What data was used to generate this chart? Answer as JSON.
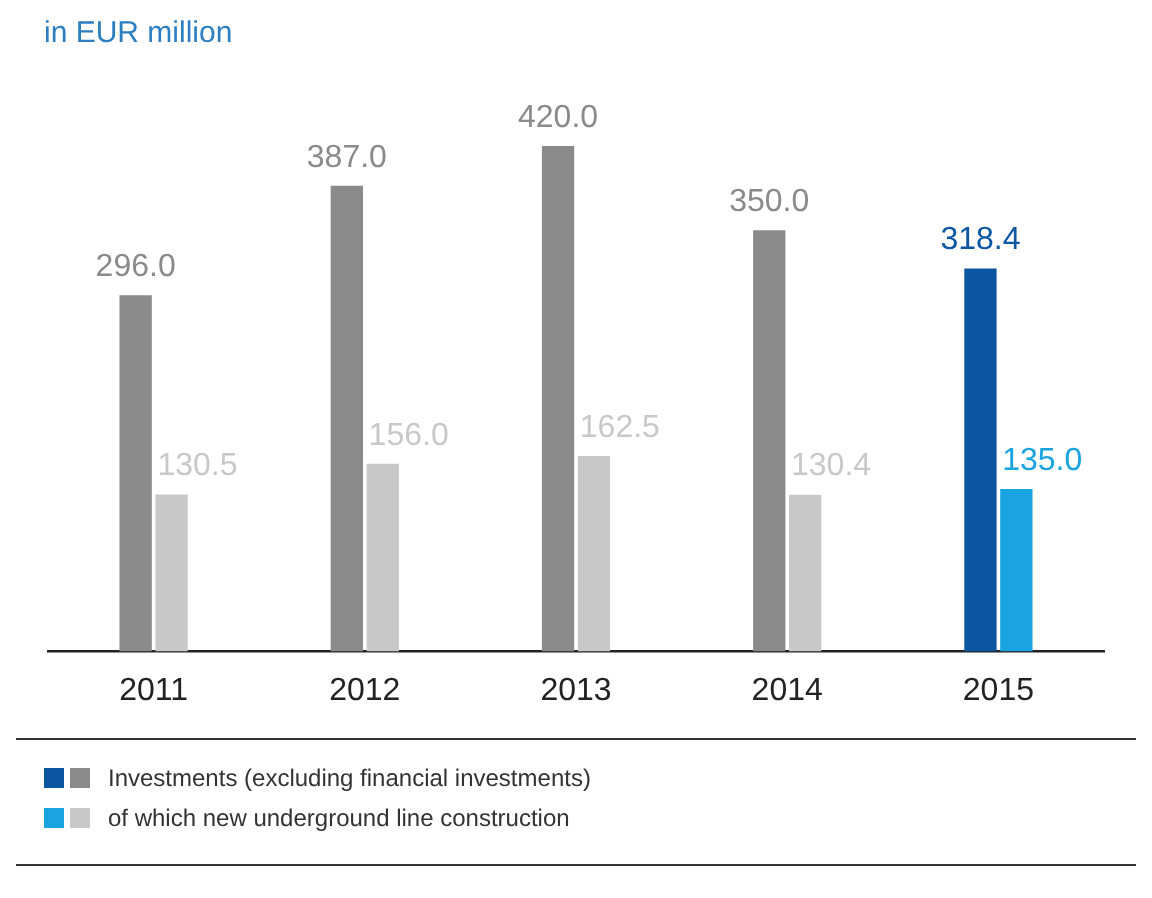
{
  "chart_data": {
    "type": "bar",
    "title": "in EUR million",
    "categories": [
      "2011",
      "2012",
      "2013",
      "2014",
      "2015"
    ],
    "series": [
      {
        "name": "Investments (excluding financial investments)",
        "colors": [
          "#8a8a8a",
          "#8a8a8a",
          "#8a8a8a",
          "#8a8a8a",
          "#0a56a0"
        ],
        "values": [
          296,
          387,
          420,
          350,
          318.4
        ],
        "value_labels": [
          "296.0",
          "387.0",
          "420.0",
          "350.0",
          "318.4"
        ]
      },
      {
        "name": "of which new underground line construction",
        "colors": [
          "#c8c8c8",
          "#c8c8c8",
          "#c8c8c8",
          "#c8c8c8",
          "#19a3e0"
        ],
        "values": [
          130.5,
          156,
          162.5,
          130.4,
          135
        ],
        "value_labels": [
          "130.5",
          "156.0",
          "162.5",
          "130.4",
          "135.0"
        ]
      }
    ],
    "legend": "bottom",
    "grid": false
  }
}
